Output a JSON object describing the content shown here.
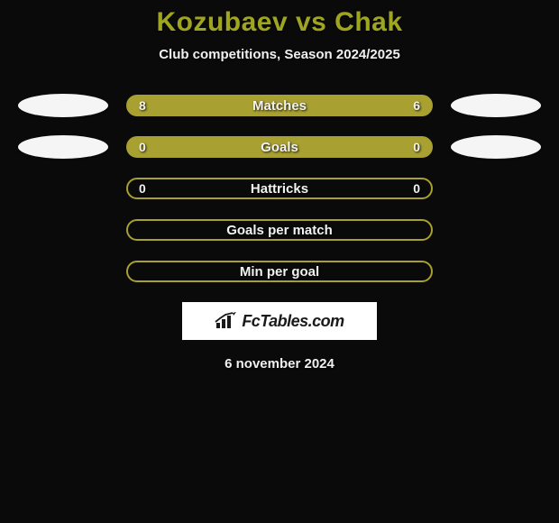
{
  "title": "Kozubaev vs Chak",
  "title_color": "#a0a520",
  "subtitle": "Club competitions, Season 2024/2025",
  "background_color": "#0a0a0a",
  "text_color": "#f0f0f0",
  "ellipse_color": "#f5f5f5",
  "rows": [
    {
      "label": "Matches",
      "left": "8",
      "right": "6",
      "fill": "#a8a030",
      "border": "#a8a030",
      "show_left_ellipse": true,
      "show_right_ellipse": true
    },
    {
      "label": "Goals",
      "left": "0",
      "right": "0",
      "fill": "#a8a030",
      "border": "#a8a030",
      "show_left_ellipse": true,
      "show_right_ellipse": true
    },
    {
      "label": "Hattricks",
      "left": "0",
      "right": "0",
      "fill": "transparent",
      "border": "#a8a030",
      "show_left_ellipse": false,
      "show_right_ellipse": false
    },
    {
      "label": "Goals per match",
      "left": "",
      "right": "",
      "fill": "transparent",
      "border": "#a8a030",
      "show_left_ellipse": false,
      "show_right_ellipse": false
    },
    {
      "label": "Min per goal",
      "left": "",
      "right": "",
      "fill": "transparent",
      "border": "#a8a030",
      "show_left_ellipse": false,
      "show_right_ellipse": false
    }
  ],
  "brand": "FcTables.com",
  "brand_bg": "#ffffff",
  "brand_text_color": "#1a1a1a",
  "date": "6 november 2024"
}
